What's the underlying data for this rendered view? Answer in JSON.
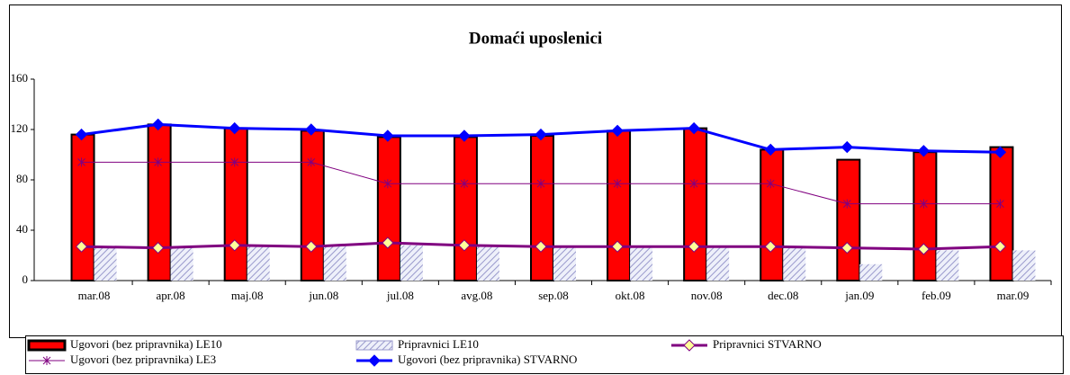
{
  "chart_data": {
    "type": "bar",
    "title": "Domaći uposlenici",
    "categories": [
      "mar.08",
      "apr.08",
      "maj.08",
      "jun.08",
      "jul.08",
      "avg.08",
      "sep.08",
      "okt.08",
      "nov.08",
      "dec.08",
      "jan.09",
      "feb.09",
      "mar.09"
    ],
    "ylim": [
      0,
      160
    ],
    "yticks": [
      0,
      40,
      80,
      120,
      160
    ],
    "series": [
      {
        "name": "Ugovori (bez pripravnika) LE10",
        "type": "bar",
        "color": "#ff0000",
        "values": [
          116,
          124,
          121,
          119,
          114,
          114,
          115,
          119,
          121,
          104,
          96,
          102,
          106
        ]
      },
      {
        "name": "Pripravnici LE10",
        "type": "bar",
        "color": "#9999cc",
        "pattern": "hatch",
        "values": [
          27,
          27,
          27,
          27,
          28,
          27,
          27,
          27,
          27,
          27,
          13,
          24,
          24
        ]
      },
      {
        "name": "Pripravnici STVARNO",
        "type": "line",
        "color": "#800080",
        "marker": "diamond",
        "marker_color": "#ffff99",
        "values": [
          27,
          26,
          28,
          27,
          30,
          28,
          27,
          27,
          27,
          27,
          26,
          25,
          27
        ]
      },
      {
        "name": "Ugovori (bez pripravnika) LE3",
        "type": "line",
        "color": "#800080",
        "marker": "star",
        "values": [
          94,
          94,
          94,
          94,
          77,
          77,
          77,
          77,
          77,
          77,
          61,
          61,
          61
        ]
      },
      {
        "name": "Ugovori (bez pripravnika) STVARNO",
        "type": "line",
        "color": "#0000ff",
        "marker": "diamond",
        "marker_color": "#0000ff",
        "values": [
          116,
          124,
          121,
          120,
          115,
          115,
          116,
          119,
          121,
          104,
          106,
          103,
          102
        ]
      }
    ]
  }
}
